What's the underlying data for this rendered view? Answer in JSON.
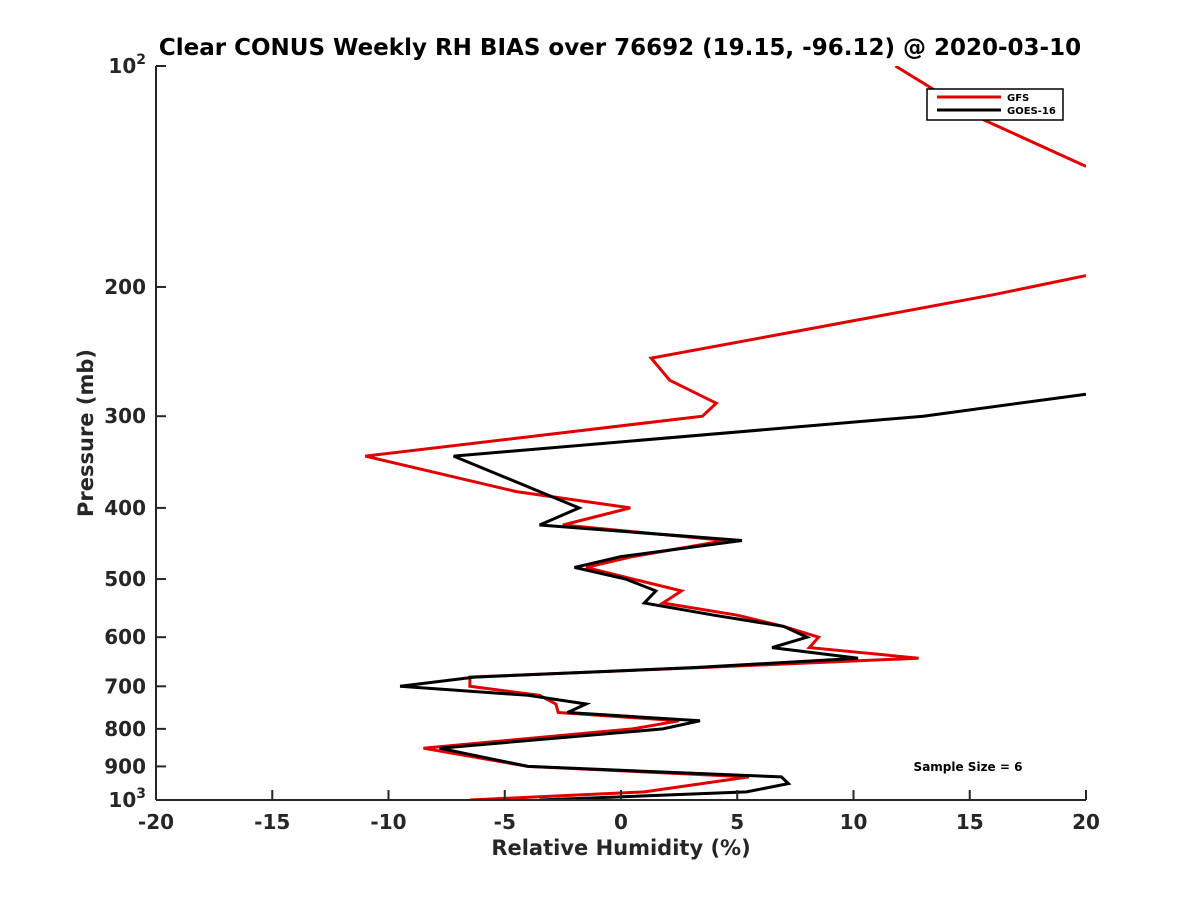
{
  "chart_data": {
    "type": "line",
    "title": "Clear CONUS Weekly RH BIAS over 76692 (19.15, -96.12) @ 2020-03-10",
    "xlabel": "Relative Humidity (%)",
    "ylabel": "Pressure (mb)",
    "xlim": [
      -20,
      20
    ],
    "ylim": [
      100,
      1000
    ],
    "yscale": "log",
    "y_reversed": true,
    "x_ticks": [
      -20,
      -15,
      -10,
      -5,
      0,
      5,
      10,
      15,
      20
    ],
    "x_tick_labels": [
      "-20",
      "-15",
      "-10",
      "-5",
      "0",
      "5",
      "10",
      "15",
      "20"
    ],
    "y_ticks": [
      100,
      200,
      300,
      400,
      500,
      600,
      700,
      800,
      900,
      1000
    ],
    "y_tick_labels": [
      {
        "base": "10",
        "exp": "2"
      },
      {
        "base": "200",
        "exp": ""
      },
      {
        "base": "300",
        "exp": ""
      },
      {
        "base": "400",
        "exp": ""
      },
      {
        "base": "500",
        "exp": ""
      },
      {
        "base": "600",
        "exp": ""
      },
      {
        "base": "700",
        "exp": ""
      },
      {
        "base": "800",
        "exp": ""
      },
      {
        "base": "900",
        "exp": ""
      },
      {
        "base": "10",
        "exp": "3"
      }
    ],
    "legend_position": "top-right",
    "annotation": "Sample Size = 6",
    "series": [
      {
        "name": "GFS",
        "color": "#e00000",
        "segments": [
          [
            [
              11.8,
              100
            ],
            [
              15.5,
              118
            ],
            [
              20,
              137
            ]
          ],
          [
            [
              20,
              193
            ],
            [
              16,
              205
            ],
            [
              7.5,
              230
            ],
            [
              1.3,
              250
            ],
            [
              2.1,
              268
            ],
            [
              4.1,
              288
            ],
            [
              3.5,
              300
            ],
            [
              -11.0,
              340
            ],
            [
              -4.5,
              380
            ],
            [
              0.4,
              400
            ],
            [
              -2.5,
              422
            ],
            [
              4.5,
              443
            ],
            [
              0.5,
              466
            ],
            [
              -1.5,
              482
            ],
            [
              0.5,
              500
            ],
            [
              2.6,
              519
            ],
            [
              1.8,
              539
            ],
            [
              5.0,
              560
            ],
            [
              7.0,
              580
            ],
            [
              8.5,
              600
            ],
            [
              8.1,
              620
            ],
            [
              12.8,
              641
            ],
            [
              3.5,
              660
            ],
            [
              -6.5,
              680
            ],
            [
              -6.5,
              700
            ],
            [
              -3.5,
              720
            ],
            [
              -2.8,
              740
            ],
            [
              -2.7,
              760
            ],
            [
              2.5,
              780
            ],
            [
              0.5,
              800
            ],
            [
              -8.5,
              850
            ],
            [
              -4.0,
              900
            ],
            [
              5.5,
              930
            ],
            [
              1.0,
              975
            ],
            [
              -6.5,
              1000
            ]
          ]
        ]
      },
      {
        "name": "GOES-16",
        "color": "#000000",
        "segments": [
          [
            [
              20,
              280
            ],
            [
              13,
              300
            ],
            [
              -7.2,
              340
            ],
            [
              -3.5,
              380
            ],
            [
              -1.8,
              400
            ],
            [
              -3.5,
              422
            ],
            [
              5.2,
              443
            ],
            [
              0.0,
              466
            ],
            [
              -2.0,
              482
            ],
            [
              0.2,
              500
            ],
            [
              1.5,
              519
            ],
            [
              1.0,
              539
            ],
            [
              4.0,
              560
            ],
            [
              7.0,
              580
            ],
            [
              8.0,
              600
            ],
            [
              6.5,
              620
            ],
            [
              10.2,
              641
            ],
            [
              3.2,
              660
            ],
            [
              -6.3,
              680
            ],
            [
              -9.5,
              700
            ],
            [
              -4.0,
              720
            ],
            [
              -1.5,
              740
            ],
            [
              -2.3,
              760
            ],
            [
              3.4,
              780
            ],
            [
              1.8,
              800
            ],
            [
              -7.8,
              850
            ],
            [
              -4.0,
              900
            ],
            [
              6.9,
              930
            ],
            [
              7.2,
              950
            ],
            [
              5.4,
              975
            ],
            [
              -3.5,
              1000
            ]
          ]
        ]
      }
    ]
  }
}
